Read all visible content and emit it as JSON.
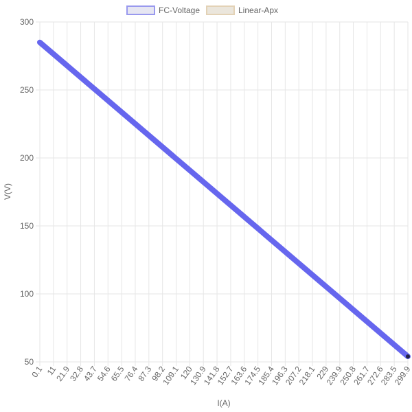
{
  "chart_data": {
    "type": "line",
    "xlabel": "I(A)",
    "ylabel": "V(V)",
    "ylim": [
      50,
      300
    ],
    "y_ticks": [
      50,
      100,
      150,
      200,
      250,
      300
    ],
    "x_tick_labels": [
      "0.1",
      "11",
      "21.9",
      "32.8",
      "43.7",
      "54.6",
      "65.5",
      "76.4",
      "87.3",
      "98.2",
      "109.1",
      "120",
      "130.9",
      "141.8",
      "152.7",
      "163.6",
      "174.5",
      "185.4",
      "196.3",
      "207.2",
      "218.1",
      "229",
      "239.9",
      "250.8",
      "261.7",
      "272.6",
      "283.5",
      "299.9"
    ],
    "grid": true,
    "legend_position": "top",
    "series": [
      {
        "name": "FC-Voltage",
        "color": "#6666ee",
        "legend_fill": "#e6e6f2",
        "legend_border": "#9999ee",
        "x": [
          0.1,
          299.9
        ],
        "y": [
          285,
          54
        ]
      },
      {
        "name": "Linear-Apx",
        "color": "#e8dcc8",
        "legend_fill": "#ebe6dc",
        "legend_border": "#e3d2b6",
        "x": [
          299.9
        ],
        "y": [
          54
        ]
      }
    ]
  }
}
